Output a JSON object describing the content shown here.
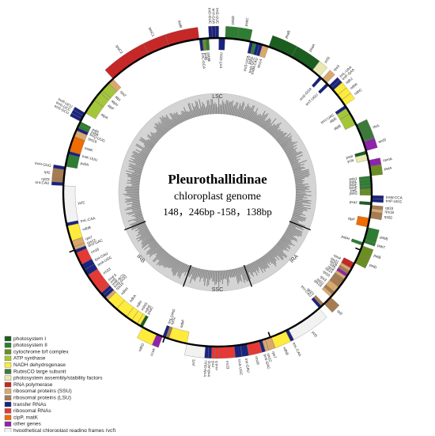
{
  "title": "Pleurothallidinae",
  "subtitle": "chloroplast genome",
  "size": "148，246bp -158，138bp",
  "regions": {
    "LSC": "LSC",
    "IRA": "IRA",
    "SSC": "SSC",
    "IRB": "IRB"
  },
  "legend": [
    {
      "label": "photosystem I",
      "color": "#1b5e20"
    },
    {
      "label": "photosystem II",
      "color": "#2e7d32"
    },
    {
      "label": "cytochrome b/f complex",
      "color": "#6b8e23"
    },
    {
      "label": "ATP synthase",
      "color": "#a4c639"
    },
    {
      "label": "NADH dehydrogenase",
      "color": "#ffeb3b"
    },
    {
      "label": "RubisCO large subunit",
      "color": "#3c7a3c"
    },
    {
      "label": "photosystem assembly/stability factors",
      "color": "#e8e8b0"
    },
    {
      "label": "RNA polymerase",
      "color": "#c62828"
    },
    {
      "label": "ribosomal proteins (SSU)",
      "color": "#d9a86c"
    },
    {
      "label": "ribosomal proteins (LSU)",
      "color": "#a67c52"
    },
    {
      "label": "transfer RNAs",
      "color": "#1a237e"
    },
    {
      "label": "ribosomal RNAs",
      "color": "#e53935"
    },
    {
      "label": "clpP, matK",
      "color": "#ef6c00"
    },
    {
      "label": "other genes",
      "color": "#8e24aa"
    },
    {
      "label": "hypothetical chloroplast reading frames (ycf)",
      "color": "#f2f2f2"
    }
  ],
  "genes": [
    {
      "name": "trnT-GGU",
      "color": "#1a237e"
    },
    {
      "name": "psbD",
      "color": "#2e7d32"
    },
    {
      "name": "psbC",
      "color": "#2e7d32"
    },
    {
      "name": "trnS-UGA",
      "color": "#1a237e"
    },
    {
      "name": "psbZ",
      "color": "#2e7d32"
    },
    {
      "name": "trnG-GCC",
      "color": "#1a237e"
    },
    {
      "name": "trnfM-CAU",
      "color": "#1a237e"
    },
    {
      "name": "rps14",
      "color": "#d9a86c"
    },
    {
      "name": "psaB",
      "color": "#1b5e20"
    },
    {
      "name": "psaA",
      "color": "#1b5e20"
    },
    {
      "name": "ycf3",
      "color": "#e8e8b0"
    },
    {
      "name": "trnS-GGA",
      "color": "#1a237e"
    },
    {
      "name": "rps4",
      "color": "#d9a86c"
    },
    {
      "name": "trnT-UGU",
      "color": "#1a237e"
    },
    {
      "name": "trnL-UAA",
      "color": "#1a237e"
    },
    {
      "name": "trnF-GAA",
      "color": "#1a237e"
    },
    {
      "name": "ndhJ",
      "color": "#ffeb3b"
    },
    {
      "name": "ndhK",
      "color": "#ffeb3b"
    },
    {
      "name": "ndhC",
      "color": "#ffeb3b"
    },
    {
      "name": "trnV-UAC",
      "color": "#1a237e"
    },
    {
      "name": "atpE",
      "color": "#a4c639"
    },
    {
      "name": "atpB",
      "color": "#a4c639"
    },
    {
      "name": "rbcL",
      "color": "#3c7a3c"
    },
    {
      "name": "accD",
      "color": "#8e24aa"
    },
    {
      "name": "psaI",
      "color": "#1b5e20"
    },
    {
      "name": "ycf4",
      "color": "#e8e8b0"
    },
    {
      "name": "cemA",
      "color": "#8e24aa"
    },
    {
      "name": "petA",
      "color": "#6b8e23"
    },
    {
      "name": "psbJ",
      "color": "#2e7d32"
    },
    {
      "name": "psbL",
      "color": "#2e7d32"
    },
    {
      "name": "psbF",
      "color": "#2e7d32"
    },
    {
      "name": "psbE",
      "color": "#2e7d32"
    },
    {
      "name": "petL",
      "color": "#6b8e23"
    },
    {
      "name": "petG",
      "color": "#6b8e23"
    },
    {
      "name": "trnW-CCA",
      "color": "#1a237e"
    },
    {
      "name": "trnP-UGG",
      "color": "#1a237e"
    },
    {
      "name": "psaJ",
      "color": "#1b5e20"
    },
    {
      "name": "rpl33",
      "color": "#a67c52"
    },
    {
      "name": "rps18",
      "color": "#d9a86c"
    },
    {
      "name": "rpl20",
      "color": "#a67c52"
    },
    {
      "name": "clpP",
      "color": "#ef6c00"
    },
    {
      "name": "psbB",
      "color": "#2e7d32"
    },
    {
      "name": "psbT",
      "color": "#2e7d32"
    },
    {
      "name": "psbH",
      "color": "#2e7d32"
    },
    {
      "name": "petB",
      "color": "#6b8e23"
    },
    {
      "name": "petD",
      "color": "#6b8e23"
    },
    {
      "name": "rpoA",
      "color": "#c62828"
    },
    {
      "name": "rps11",
      "color": "#d9a86c"
    },
    {
      "name": "rpl36",
      "color": "#a67c52"
    },
    {
      "name": "infA",
      "color": "#8e24aa"
    },
    {
      "name": "rps8",
      "color": "#d9a86c"
    },
    {
      "name": "rpl14",
      "color": "#a67c52"
    },
    {
      "name": "rpl16",
      "color": "#a67c52"
    },
    {
      "name": "rps3",
      "color": "#d9a86c"
    },
    {
      "name": "rpl22",
      "color": "#a67c52"
    },
    {
      "name": "rps19",
      "color": "#d9a86c"
    },
    {
      "name": "rpl2",
      "color": "#a67c52"
    },
    {
      "name": "rpl23",
      "color": "#a67c52"
    },
    {
      "name": "trnI-CAU",
      "color": "#1a237e"
    },
    {
      "name": "ycf2",
      "color": "#f2f2f2"
    },
    {
      "name": "trnL-CAA",
      "color": "#1a237e"
    },
    {
      "name": "ndhB",
      "color": "#ffeb3b"
    },
    {
      "name": "rps7",
      "color": "#d9a86c"
    },
    {
      "name": "rps12",
      "color": "#d9a86c"
    },
    {
      "name": "trnV-GAC",
      "color": "#1a237e"
    },
    {
      "name": "rrn16",
      "color": "#e53935"
    },
    {
      "name": "trnI-GAU",
      "color": "#1a237e"
    },
    {
      "name": "trnA-UGC",
      "color": "#1a237e"
    },
    {
      "name": "rrn23",
      "color": "#e53935"
    },
    {
      "name": "rrn4.5",
      "color": "#e53935"
    },
    {
      "name": "rrn5",
      "color": "#e53935"
    },
    {
      "name": "trnR-ACG",
      "color": "#1a237e"
    },
    {
      "name": "trnN-GUU",
      "color": "#1a237e"
    },
    {
      "name": "ycf1",
      "color": "#f2f2f2"
    },
    {
      "name": "ndhF",
      "color": "#ffeb3b"
    },
    {
      "name": "rpl32",
      "color": "#a67c52"
    },
    {
      "name": "trnL-UAG",
      "color": "#1a237e"
    },
    {
      "name": "ccsA",
      "color": "#8e24aa"
    },
    {
      "name": "ndhD",
      "color": "#ffeb3b"
    },
    {
      "name": "psaC",
      "color": "#1b5e20"
    },
    {
      "name": "ndhE",
      "color": "#ffeb3b"
    },
    {
      "name": "ndhG",
      "color": "#ffeb3b"
    },
    {
      "name": "ndhI",
      "color": "#ffeb3b"
    },
    {
      "name": "ndhA",
      "color": "#ffeb3b"
    },
    {
      "name": "ndhH",
      "color": "#ffeb3b"
    },
    {
      "name": "rps15",
      "color": "#d9a86c"
    },
    {
      "name": "trnN-GUU",
      "color": "#1a237e"
    },
    {
      "name": "trnR-ACG",
      "color": "#1a237e"
    },
    {
      "name": "rrn5",
      "color": "#e53935"
    },
    {
      "name": "rrn4.5",
      "color": "#e53935"
    },
    {
      "name": "rrn23",
      "color": "#e53935"
    },
    {
      "name": "trnA-UGC",
      "color": "#1a237e"
    },
    {
      "name": "trnI-GAU",
      "color": "#1a237e"
    },
    {
      "name": "rrn16",
      "color": "#e53935"
    },
    {
      "name": "trnV-GAC",
      "color": "#1a237e"
    },
    {
      "name": "rps12",
      "color": "#d9a86c"
    },
    {
      "name": "rps7",
      "color": "#d9a86c"
    },
    {
      "name": "ndhB",
      "color": "#ffeb3b"
    },
    {
      "name": "trnL-CAA",
      "color": "#1a237e"
    },
    {
      "name": "ycf2",
      "color": "#f2f2f2"
    },
    {
      "name": "trnI-CAU",
      "color": "#1a237e"
    },
    {
      "name": "rpl23",
      "color": "#a67c52"
    },
    {
      "name": "rpl2",
      "color": "#a67c52"
    },
    {
      "name": "trnH-GUG",
      "color": "#1a237e"
    },
    {
      "name": "psbA",
      "color": "#2e7d32"
    },
    {
      "name": "trnK-UUU",
      "color": "#1a237e"
    },
    {
      "name": "matK",
      "color": "#ef6c00"
    },
    {
      "name": "rps16",
      "color": "#d9a86c"
    },
    {
      "name": "trnQ-UUG",
      "color": "#1a237e"
    },
    {
      "name": "psbK",
      "color": "#2e7d32"
    },
    {
      "name": "psbI",
      "color": "#2e7d32"
    },
    {
      "name": "trnS-GCU",
      "color": "#1a237e"
    },
    {
      "name": "trnG-UCC",
      "color": "#1a237e"
    },
    {
      "name": "trnR-UCU",
      "color": "#1a237e"
    },
    {
      "name": "atpA",
      "color": "#a4c639"
    },
    {
      "name": "atpF",
      "color": "#a4c639"
    },
    {
      "name": "atpH",
      "color": "#a4c639"
    },
    {
      "name": "atpI",
      "color": "#a4c639"
    },
    {
      "name": "rps2",
      "color": "#d9a86c"
    },
    {
      "name": "rpoC2",
      "color": "#c62828"
    },
    {
      "name": "rpoC1",
      "color": "#c62828"
    },
    {
      "name": "rpoB",
      "color": "#c62828"
    },
    {
      "name": "trnC-GCA",
      "color": "#1a237e"
    },
    {
      "name": "petN",
      "color": "#6b8e23"
    },
    {
      "name": "psbM",
      "color": "#2e7d32"
    },
    {
      "name": "trnD-GUC",
      "color": "#1a237e"
    },
    {
      "name": "trnY-GUA",
      "color": "#1a237e"
    },
    {
      "name": "trnE-UUC",
      "color": "#1a237e"
    }
  ]
}
